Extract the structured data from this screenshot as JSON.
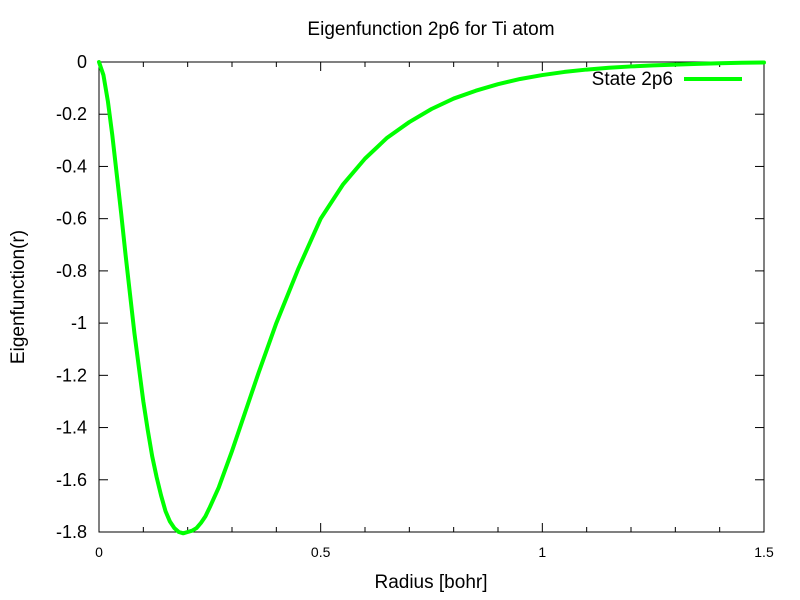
{
  "chart_data": {
    "type": "line",
    "title": "Eigenfunction 2p6 for Ti atom",
    "xlabel": "Radius [bohr]",
    "ylabel": "Eigenfunction(r)",
    "xlim": [
      0,
      1.5
    ],
    "ylim": [
      -1.8,
      0
    ],
    "xticks": [
      0,
      0.5,
      1,
      1.5
    ],
    "xtick_labels": [
      "0",
      "0.5",
      "1",
      "1.5"
    ],
    "yticks": [
      0,
      -0.2,
      -0.4,
      -0.6,
      -0.8,
      -1,
      -1.2,
      -1.4,
      -1.6,
      -1.8
    ],
    "ytick_labels": [
      "0",
      "-0.2",
      "-0.4",
      "-0.6",
      "-0.8",
      "-1",
      "-1.2",
      "-1.4",
      "-1.6",
      "-1.8"
    ],
    "grid": false,
    "legend_position": "top-right",
    "series": [
      {
        "name": "State 2p6",
        "color": "#00ff00",
        "x": [
          0,
          0.01,
          0.02,
          0.03,
          0.04,
          0.05,
          0.06,
          0.07,
          0.08,
          0.09,
          0.1,
          0.11,
          0.12,
          0.13,
          0.14,
          0.15,
          0.16,
          0.17,
          0.18,
          0.19,
          0.2,
          0.21,
          0.22,
          0.23,
          0.24,
          0.25,
          0.27,
          0.3,
          0.33,
          0.36,
          0.4,
          0.45,
          0.5,
          0.55,
          0.6,
          0.65,
          0.7,
          0.75,
          0.8,
          0.85,
          0.9,
          0.95,
          1,
          1.05,
          1.1,
          1.15,
          1.2,
          1.25,
          1.3,
          1.35,
          1.4,
          1.45,
          1.5
        ],
        "y": [
          0,
          -0.05,
          -0.15,
          -0.28,
          -0.43,
          -0.58,
          -0.74,
          -0.89,
          -1.04,
          -1.17,
          -1.3,
          -1.41,
          -1.51,
          -1.59,
          -1.66,
          -1.72,
          -1.76,
          -1.785,
          -1.8,
          -1.805,
          -1.8,
          -1.795,
          -1.785,
          -1.765,
          -1.74,
          -1.705,
          -1.63,
          -1.49,
          -1.34,
          -1.19,
          -1.0,
          -0.79,
          -0.6,
          -0.47,
          -0.37,
          -0.29,
          -0.23,
          -0.18,
          -0.14,
          -0.11,
          -0.085,
          -0.065,
          -0.05,
          -0.038,
          -0.029,
          -0.022,
          -0.017,
          -0.013,
          -0.01,
          -0.007,
          -0.005,
          -0.003,
          -0.002
        ]
      }
    ]
  }
}
